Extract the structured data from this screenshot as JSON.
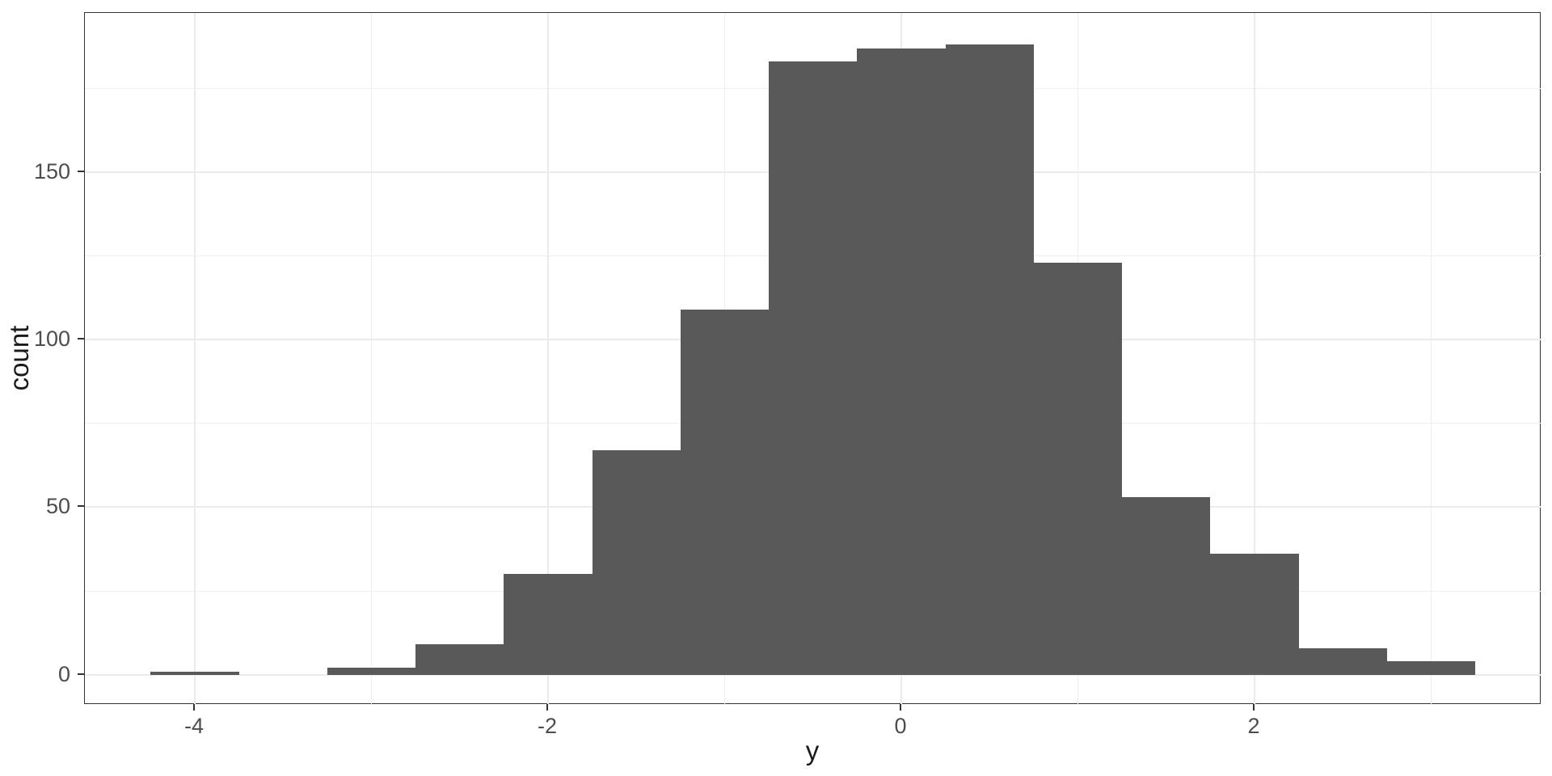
{
  "figure": {
    "background": "#FFFFFF"
  },
  "chart_data": {
    "type": "histogram",
    "title": "",
    "xlabel": "y",
    "ylabel": "count",
    "binwidth": 0.5,
    "bins": [
      {
        "x": -4.0,
        "count": 1
      },
      {
        "x": -3.5,
        "count": 0
      },
      {
        "x": -3.0,
        "count": 2
      },
      {
        "x": -2.5,
        "count": 9
      },
      {
        "x": -2.0,
        "count": 30
      },
      {
        "x": -1.5,
        "count": 67
      },
      {
        "x": -1.0,
        "count": 109
      },
      {
        "x": -0.5,
        "count": 183
      },
      {
        "x": 0.0,
        "count": 187
      },
      {
        "x": 0.5,
        "count": 188
      },
      {
        "x": 1.0,
        "count": 123
      },
      {
        "x": 1.5,
        "count": 53
      },
      {
        "x": 2.0,
        "count": 36
      },
      {
        "x": 2.5,
        "count": 8
      },
      {
        "x": 3.0,
        "count": 4
      }
    ],
    "xlim": [
      -4.625,
      3.625
    ],
    "ylim": [
      -9,
      197.5
    ],
    "x_ticks": [
      {
        "value": -4,
        "label": "-4"
      },
      {
        "value": -2,
        "label": "-2"
      },
      {
        "value": 0,
        "label": "0"
      },
      {
        "value": 2,
        "label": "2"
      }
    ],
    "y_ticks": [
      {
        "value": 0,
        "label": "0"
      },
      {
        "value": 50,
        "label": "50"
      },
      {
        "value": 100,
        "label": "100"
      },
      {
        "value": 150,
        "label": "150"
      }
    ],
    "x_minor_gridlines": [
      -3,
      -1,
      1,
      3
    ],
    "y_minor_gridlines": [
      25,
      75,
      125,
      175
    ],
    "grid": true,
    "legend": "none",
    "colors": {
      "bar_fill": "#595959",
      "panel_background": "#FFFFFF",
      "grid_major": "#EBEBEB",
      "grid_minor": "#EFEFEF",
      "panel_border": "#333333",
      "tick_mark": "#333333",
      "tick_label": "#4D4D4D",
      "axis_title": "#1A1A1A"
    }
  }
}
